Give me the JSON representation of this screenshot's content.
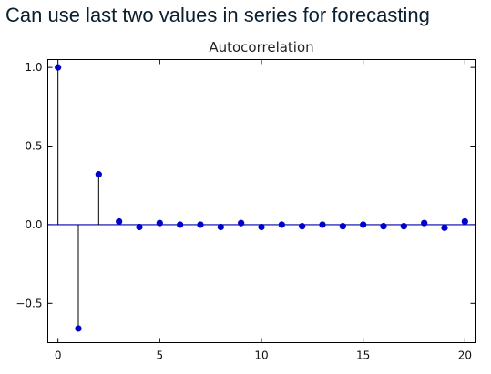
{
  "heading": "Can use last two values in series for forecasting",
  "chart_data": {
    "type": "scatter",
    "style": "stem",
    "title": "Autocorrelation",
    "xlabel": "",
    "ylabel": "",
    "xlim": [
      -0.5,
      20.5
    ],
    "ylim": [
      -0.75,
      1.05
    ],
    "xticks": [
      0,
      5,
      10,
      15,
      20
    ],
    "xtick_labels": [
      "0",
      "5",
      "10",
      "15",
      "20"
    ],
    "yticks": [
      -0.5,
      0.0,
      0.5,
      1.0
    ],
    "ytick_labels": [
      "−0.5",
      "0.0",
      "0.5",
      "1.0"
    ],
    "grid": false,
    "legend": false,
    "zero_line": true,
    "marker_color": "#0000cc",
    "zero_line_color": "#0000aa",
    "stem_color": "#000000",
    "x": [
      0,
      1,
      2,
      3,
      4,
      5,
      6,
      7,
      8,
      9,
      10,
      11,
      12,
      13,
      14,
      15,
      16,
      17,
      18,
      19,
      20
    ],
    "values": [
      1.0,
      -0.66,
      0.32,
      0.02,
      -0.015,
      0.01,
      0.0,
      0.0,
      -0.015,
      0.01,
      -0.015,
      0.0,
      -0.01,
      0.0,
      -0.01,
      0.0,
      -0.01,
      -0.01,
      0.01,
      -0.02,
      0.02
    ]
  }
}
